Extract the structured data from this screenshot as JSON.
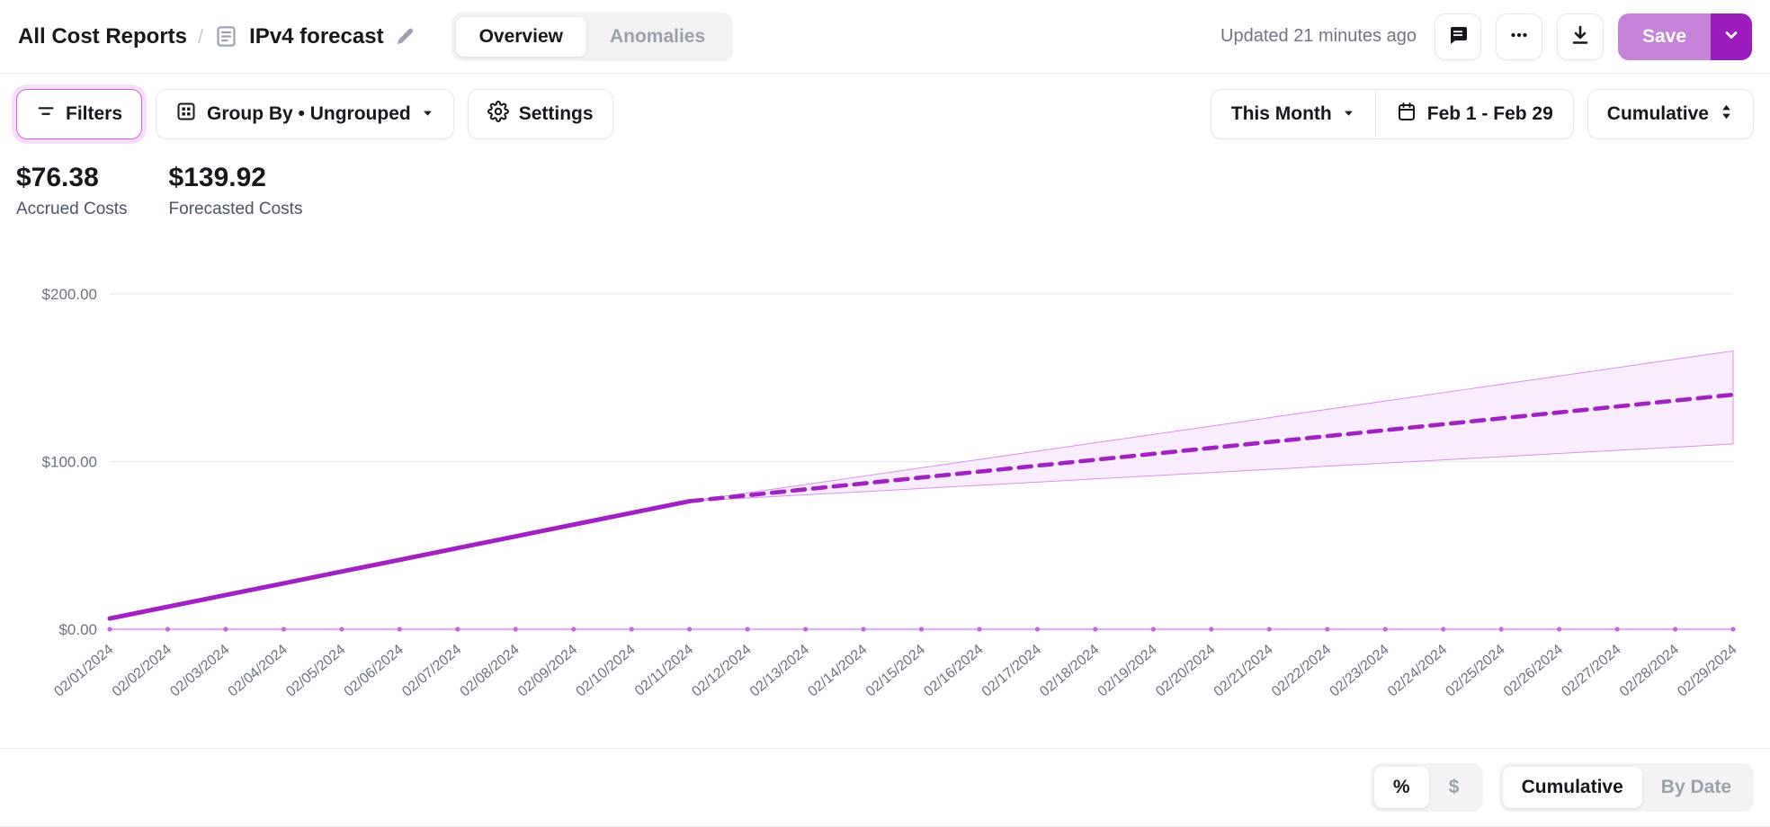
{
  "header": {
    "breadcrumb": {
      "root": "All Cost Reports",
      "separator": "/",
      "title": "IPv4 forecast"
    },
    "tabs": [
      {
        "label": "Overview",
        "active": true
      },
      {
        "label": "Anomalies",
        "active": false
      }
    ],
    "updated": "Updated 21 minutes ago",
    "save_label": "Save"
  },
  "toolbar": {
    "filters_label": "Filters",
    "group_by_label": "Group By • Ungrouped",
    "settings_label": "Settings",
    "period_label": "This Month",
    "date_range_label": "Feb 1 - Feb 29",
    "aggregation_label": "Cumulative"
  },
  "stats": [
    {
      "value": "$76.38",
      "label": "Accrued Costs"
    },
    {
      "value": "$139.92",
      "label": "Forecasted Costs"
    }
  ],
  "footer": {
    "percent_label": "%",
    "dollar_label": "$",
    "cumulative_label": "Cumulative",
    "by_date_label": "By Date"
  },
  "icons": [
    "document-icon",
    "edit-pencil-icon",
    "comment-icon",
    "ellipsis-icon",
    "download-icon",
    "chevron-down-icon",
    "filter-icon",
    "grid-icon",
    "gear-icon",
    "caret-down-icon",
    "calendar-icon",
    "up-down-arrows-icon"
  ],
  "colors": {
    "accent_purple": "#a220c4",
    "save_light_purple": "#c583d9",
    "save_dark_purple": "#9b1bbd",
    "band_fill": "#f9ecfc",
    "band_edge": "#d791e8",
    "baseline_purple": "#dcb8f0",
    "grid_gray": "#e9eaed",
    "axis_text_gray": "#6b7280"
  },
  "chart_data": {
    "type": "line",
    "title": "",
    "xlabel": "",
    "ylabel": "",
    "ylim": [
      0,
      200
    ],
    "grid": "horizontal",
    "legend": "none",
    "yticks": [
      {
        "value": 0,
        "label": "$0.00"
      },
      {
        "value": 100,
        "label": "$100.00"
      },
      {
        "value": 200,
        "label": "$200.00"
      }
    ],
    "x": [
      "02/01/2024",
      "02/02/2024",
      "02/03/2024",
      "02/04/2024",
      "02/05/2024",
      "02/06/2024",
      "02/07/2024",
      "02/08/2024",
      "02/09/2024",
      "02/10/2024",
      "02/11/2024",
      "02/12/2024",
      "02/13/2024",
      "02/14/2024",
      "02/15/2024",
      "02/16/2024",
      "02/17/2024",
      "02/18/2024",
      "02/19/2024",
      "02/20/2024",
      "02/21/2024",
      "02/22/2024",
      "02/23/2024",
      "02/24/2024",
      "02/25/2024",
      "02/26/2024",
      "02/27/2024",
      "02/28/2024",
      "02/29/2024"
    ],
    "series": [
      {
        "name": "Accrued Costs (actual)",
        "style": "solid",
        "start_index": 0,
        "values": [
          6.4,
          13.4,
          20.4,
          27.4,
          34.4,
          41.4,
          48.4,
          55.4,
          62.4,
          69.4,
          76.38
        ]
      },
      {
        "name": "Forecasted Costs",
        "style": "dashed",
        "start_index": 10,
        "values": [
          76.38,
          79.91,
          83.44,
          86.97,
          90.5,
          94.03,
          97.56,
          101.09,
          104.62,
          108.15,
          111.68,
          115.21,
          118.74,
          122.27,
          125.8,
          129.33,
          132.86,
          136.39,
          139.92
        ]
      }
    ],
    "confidence_band": {
      "start_index": 10,
      "upper": [
        76.38,
        81.36,
        86.34,
        91.32,
        96.3,
        101.28,
        106.26,
        111.24,
        116.22,
        121.2,
        126.18,
        131.16,
        136.14,
        141.12,
        146.1,
        151.08,
        156.06,
        161.04,
        166.0
      ],
      "lower": [
        76.38,
        78.28,
        80.17,
        82.07,
        83.96,
        85.86,
        87.75,
        89.65,
        91.54,
        93.44,
        95.33,
        97.23,
        99.12,
        101.02,
        102.91,
        104.81,
        106.7,
        108.6,
        110.5
      ]
    },
    "baseline_value": 0
  }
}
